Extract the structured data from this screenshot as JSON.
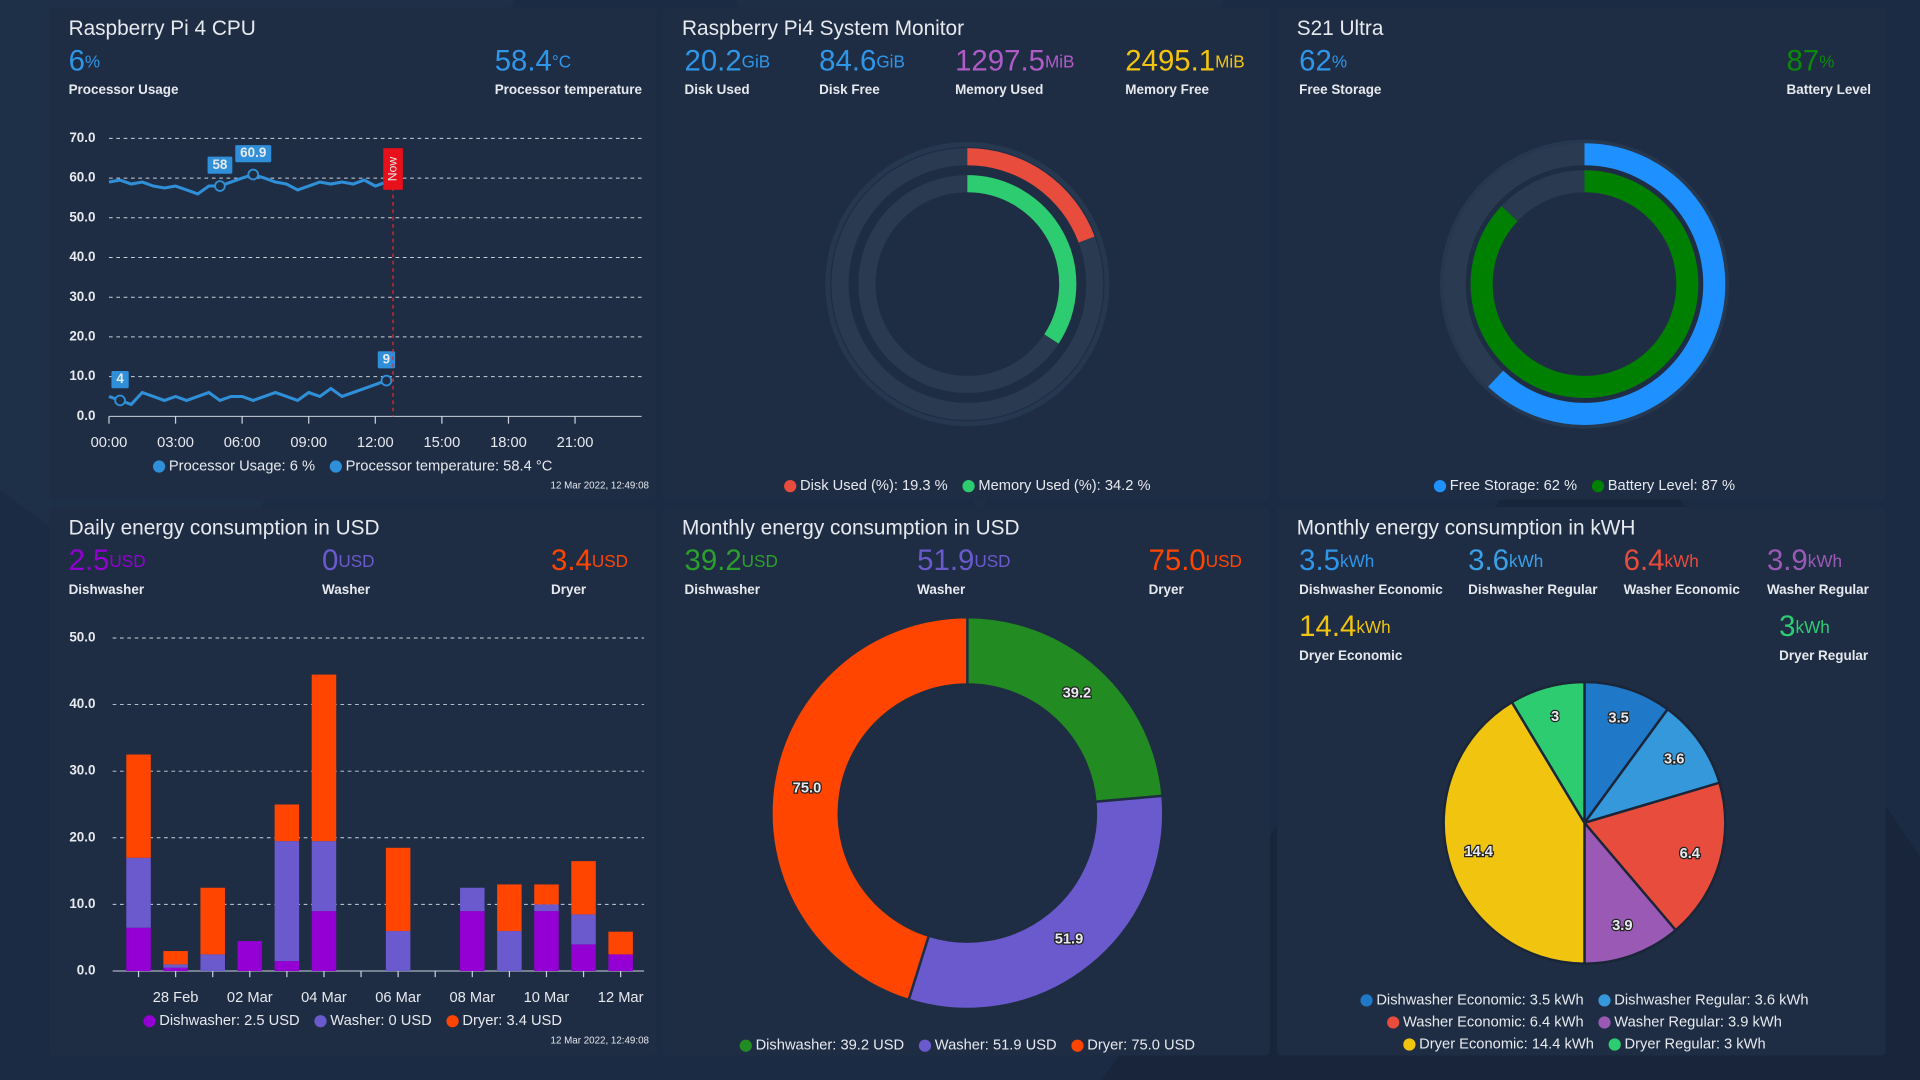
{
  "chart_data": [
    {
      "type": "line",
      "title": "Raspberry Pi 4 CPU",
      "stats": [
        {
          "value": "6",
          "unit": "%",
          "label": "Processor Usage",
          "color": "#2f96e8"
        },
        {
          "value": "58.4",
          "unit": "°C",
          "label": "Processor temperature",
          "color": "#2f96e8"
        }
      ],
      "x": [
        0,
        0.5,
        1,
        1.5,
        2,
        2.5,
        3,
        3.5,
        4,
        4.5,
        5,
        5.5,
        6,
        6.5,
        7,
        7.5,
        8,
        8.5,
        9,
        9.5,
        10,
        10.5,
        11,
        11.5,
        12,
        12.5
      ],
      "series": [
        {
          "name": "Processor Usage: 6 %",
          "color": "#2f8fd8",
          "values": [
            5,
            4,
            3,
            6,
            5,
            4,
            5,
            4,
            5,
            6,
            4,
            5,
            5,
            4,
            5,
            6,
            5,
            4,
            6,
            5,
            7,
            5,
            6,
            7,
            8,
            9
          ]
        },
        {
          "name": "Processor temperature: 58.4 °C",
          "color": "#2f8fd8",
          "values": [
            59,
            59.5,
            58.5,
            59,
            58,
            57.5,
            58,
            57,
            56,
            58,
            58,
            59,
            60,
            60.9,
            60,
            59,
            58.5,
            57,
            58,
            59,
            58.5,
            59,
            58.5,
            59.5,
            58,
            59
          ]
        }
      ],
      "annotations": [
        {
          "x": 5,
          "y": 58
        },
        {
          "x": 6.5,
          "y": 60.9
        },
        {
          "x": 0.5,
          "y": 4
        },
        {
          "x": 12.5,
          "y": 9
        }
      ],
      "now": {
        "x": 12.8,
        "label": "Now"
      },
      "xlim": [
        0,
        24
      ],
      "xticks": [
        {
          "value": 0,
          "label": "00:00"
        },
        {
          "value": 3,
          "label": "03:00"
        },
        {
          "value": 6,
          "label": "06:00"
        },
        {
          "value": 9,
          "label": "09:00"
        },
        {
          "value": 12,
          "label": "12:00"
        },
        {
          "value": 15,
          "label": "15:00"
        },
        {
          "value": 18,
          "label": "18:00"
        },
        {
          "value": 21,
          "label": "21:00"
        }
      ],
      "ylim": [
        0,
        70
      ],
      "yticks": [
        {
          "value": 0,
          "label": "0.0"
        },
        {
          "value": 10,
          "label": "10.0"
        },
        {
          "value": 20,
          "label": "20.0"
        },
        {
          "value": 30,
          "label": "30.0"
        },
        {
          "value": 40,
          "label": "40.0"
        },
        {
          "value": 50,
          "label": "50.0"
        },
        {
          "value": 60,
          "label": "60.0"
        },
        {
          "value": 70,
          "label": "70.0"
        }
      ],
      "grid": true,
      "footnote": "12 Mar 2022, 12:49:08"
    },
    {
      "type": "radialBar",
      "title": "Raspberry Pi4 System Monitor",
      "stats": [
        {
          "value": "20.2",
          "unit": "GiB",
          "label": "Disk Used",
          "color": "#2f96e8"
        },
        {
          "value": "84.6",
          "unit": "GiB",
          "label": "Disk Free",
          "color": "#2f96e8"
        },
        {
          "value": "1297.5",
          "unit": "MiB",
          "label": "Memory Used",
          "color": "#b05cc8"
        },
        {
          "value": "2495.1",
          "unit": "MiB",
          "label": "Memory Free",
          "color": "#f2c40f"
        }
      ],
      "series": [
        {
          "name": "Disk Used (%): 19.3 %",
          "color": "#e74c3c",
          "values": [
            19.3
          ]
        },
        {
          "name": "Memory Used (%): 34.2 %",
          "color": "#2ecc71",
          "values": [
            34.2
          ]
        }
      ]
    },
    {
      "type": "radialBar",
      "title": "S21 Ultra",
      "stats": [
        {
          "value": "62",
          "unit": "%",
          "label": "Free Storage",
          "color": "#2f96e8"
        },
        {
          "value": "87",
          "unit": "%",
          "label": "Battery Level",
          "color": "#0a8a0a"
        }
      ],
      "series": [
        {
          "name": "Free Storage: 62 %",
          "color": "#1e90ff",
          "values": [
            62
          ]
        },
        {
          "name": "Battery Level: 87 %",
          "color": "#008000",
          "values": [
            87
          ]
        }
      ]
    },
    {
      "type": "stackedBar",
      "title": "Daily energy consumption in USD",
      "stats": [
        {
          "value": "2.5",
          "unit": "USD",
          "label": "Dishwasher",
          "color": "#9400d3"
        },
        {
          "value": "0",
          "unit": "USD",
          "label": "Washer",
          "color": "#6a5acd"
        },
        {
          "value": "3.4",
          "unit": "USD",
          "label": "Dryer",
          "color": "#ff4500"
        }
      ],
      "categories": [
        null,
        "28 Feb",
        null,
        "02 Mar",
        null,
        "04 Mar",
        null,
        "06 Mar",
        null,
        "08 Mar",
        null,
        "10 Mar",
        null,
        "12 Mar"
      ],
      "series": [
        {
          "name": "Dishwasher: 2.5 USD",
          "color": "#9400d3",
          "values": [
            6.5,
            0.5,
            0,
            4.5,
            1.5,
            9,
            0,
            0,
            0,
            9,
            0,
            9,
            4,
            2.5
          ]
        },
        {
          "name": "Washer: 0 USD",
          "color": "#6a5acd",
          "values": [
            10.5,
            0.5,
            2.5,
            0,
            18,
            10.5,
            0,
            6,
            0,
            3.5,
            6,
            1,
            4.5,
            0
          ]
        },
        {
          "name": "Dryer: 3.4 USD",
          "color": "#ff4500",
          "values": [
            15.5,
            2,
            10,
            0,
            5.5,
            25,
            0,
            12.5,
            0,
            0,
            7,
            3,
            8,
            3.4
          ]
        }
      ],
      "ylim": [
        0,
        50
      ],
      "yticks": [
        {
          "value": 0,
          "label": "0.0"
        },
        {
          "value": 10,
          "label": "10.0"
        },
        {
          "value": 20,
          "label": "20.0"
        },
        {
          "value": 30,
          "label": "30.0"
        },
        {
          "value": 40,
          "label": "40.0"
        },
        {
          "value": 50,
          "label": "50.0"
        }
      ],
      "grid": true,
      "footnote": "12 Mar 2022, 12:49:08"
    },
    {
      "type": "donut",
      "title": "Monthly energy consumption in USD",
      "stats": [
        {
          "value": "39.2",
          "unit": "USD",
          "label": "Dishwasher",
          "color": "#2ca02c"
        },
        {
          "value": "51.9",
          "unit": "USD",
          "label": "Washer",
          "color": "#6a5acd"
        },
        {
          "value": "75.0",
          "unit": "USD",
          "label": "Dryer",
          "color": "#ff4500"
        }
      ],
      "categories": [
        "Dishwasher: 39.2 USD",
        "Washer: 51.9 USD",
        "Dryer: 75.0 USD"
      ],
      "values": [
        39.2,
        51.9,
        75.0
      ],
      "value_labels": [
        "39.2",
        "51.9",
        "75.0"
      ],
      "colors": [
        "#228b22",
        "#6a5acd",
        "#ff4500"
      ]
    },
    {
      "type": "pie",
      "title": "Monthly energy consumption in kWH",
      "stats": [
        {
          "value": "3.5",
          "unit": "kWh",
          "label": "Dishwasher Economic",
          "color": "#2f96e8"
        },
        {
          "value": "3.6",
          "unit": "kWh",
          "label": "Dishwasher Regular",
          "color": "#3aa0e8"
        },
        {
          "value": "6.4",
          "unit": "kWh",
          "label": "Washer Economic",
          "color": "#e74c3c"
        },
        {
          "value": "3.9",
          "unit": "kWh",
          "label": "Washer Regular",
          "color": "#9b59b6"
        },
        {
          "value": "14.4",
          "unit": "kWh",
          "label": "Dryer Economic",
          "color": "#f1c40f"
        },
        {
          "value": "3",
          "unit": "kWh",
          "label": "Dryer Regular",
          "color": "#2ecc71"
        }
      ],
      "categories": [
        "Dishwasher Economic: 3.5 kWh",
        "Dishwasher Regular: 3.6 kWh",
        "Washer Economic: 6.4 kWh",
        "Washer Regular: 3.9 kWh",
        "Dryer Economic: 14.4 kWh",
        "Dryer Regular: 3 kWh"
      ],
      "values": [
        3.5,
        3.6,
        6.4,
        3.9,
        14.4,
        3
      ],
      "colors": [
        "#1f78c8",
        "#3498db",
        "#e74c3c",
        "#9b59b6",
        "#f1c40f",
        "#2ecc71"
      ]
    }
  ]
}
